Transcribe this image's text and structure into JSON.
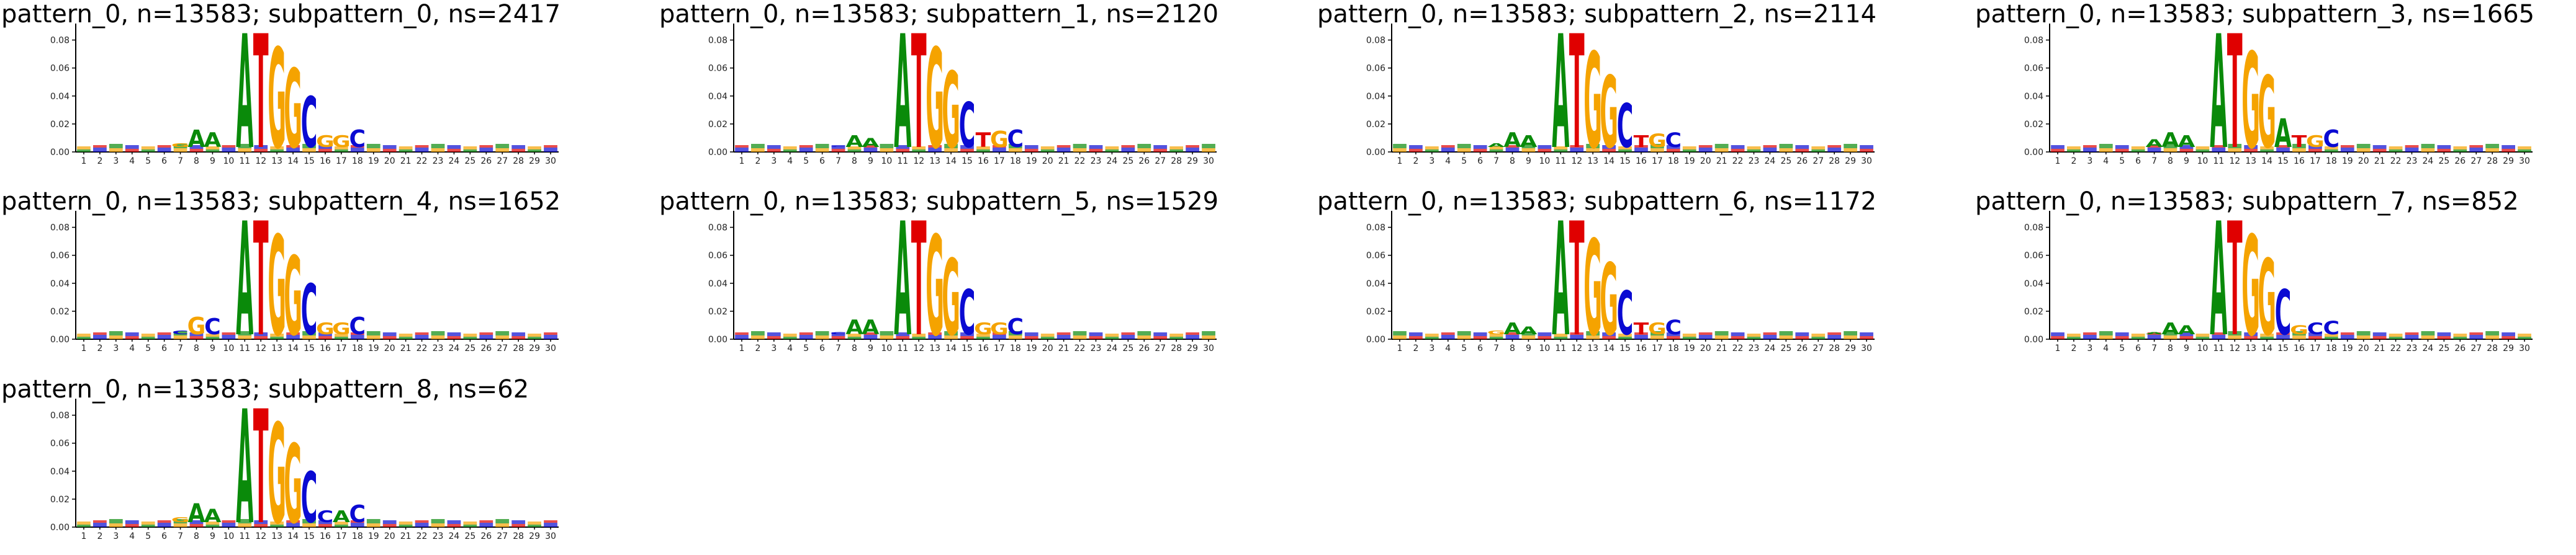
{
  "colors": {
    "A": "#0a8a0a",
    "C": "#0a0ad2",
    "G": "#f5a300",
    "T": "#e00000"
  },
  "chart_data": [
    {
      "type": "sequence-logo",
      "title": "pattern_0, n=13583; subpattern_0, ns=2417",
      "positions": [
        1,
        2,
        3,
        4,
        5,
        6,
        7,
        8,
        9,
        10,
        11,
        12,
        13,
        14,
        15,
        16,
        17,
        18,
        19,
        20,
        21,
        22,
        23,
        24,
        25,
        26,
        27,
        28,
        29,
        30
      ],
      "yticks": [
        "0.00",
        "0.02",
        "0.04",
        "0.06",
        "0.08"
      ],
      "ylim": [
        0,
        0.09
      ],
      "letters": [
        {
          "pos": 7,
          "b": "G",
          "v": 0.006
        },
        {
          "pos": 8,
          "b": "A",
          "v": 0.016
        },
        {
          "pos": 9,
          "b": "A",
          "v": 0.014
        },
        {
          "pos": 11,
          "b": "A",
          "v": 0.085
        },
        {
          "pos": 12,
          "b": "T",
          "v": 0.085
        },
        {
          "pos": 13,
          "b": "G",
          "v": 0.075
        },
        {
          "pos": 14,
          "b": "G",
          "v": 0.06
        },
        {
          "pos": 15,
          "b": "C",
          "v": 0.04
        },
        {
          "pos": 16,
          "b": "G",
          "v": 0.012
        },
        {
          "pos": 17,
          "b": "G",
          "v": 0.012
        },
        {
          "pos": 18,
          "b": "C",
          "v": 0.016
        }
      ]
    },
    {
      "type": "sequence-logo",
      "title": "pattern_0, n=13583; subpattern_1, ns=2120",
      "positions": [
        1,
        2,
        3,
        4,
        5,
        6,
        7,
        8,
        9,
        10,
        11,
        12,
        13,
        14,
        15,
        16,
        17,
        18,
        19,
        20,
        21,
        22,
        23,
        24,
        25,
        26,
        27,
        28,
        29,
        30
      ],
      "yticks": [
        "0.00",
        "0.02",
        "0.04",
        "0.06",
        "0.08"
      ],
      "ylim": [
        0,
        0.09
      ],
      "letters": [
        {
          "pos": 7,
          "b": "C",
          "v": 0.004
        },
        {
          "pos": 8,
          "b": "A",
          "v": 0.012
        },
        {
          "pos": 9,
          "b": "A",
          "v": 0.01
        },
        {
          "pos": 11,
          "b": "A",
          "v": 0.085
        },
        {
          "pos": 12,
          "b": "T",
          "v": 0.085
        },
        {
          "pos": 13,
          "b": "G",
          "v": 0.075
        },
        {
          "pos": 14,
          "b": "G",
          "v": 0.058
        },
        {
          "pos": 15,
          "b": "C",
          "v": 0.036
        },
        {
          "pos": 16,
          "b": "T",
          "v": 0.014
        },
        {
          "pos": 17,
          "b": "G",
          "v": 0.015
        },
        {
          "pos": 18,
          "b": "C",
          "v": 0.016
        }
      ]
    },
    {
      "type": "sequence-logo",
      "title": "pattern_0, n=13583; subpattern_2, ns=2114",
      "positions": [
        1,
        2,
        3,
        4,
        5,
        6,
        7,
        8,
        9,
        10,
        11,
        12,
        13,
        14,
        15,
        16,
        17,
        18,
        19,
        20,
        21,
        22,
        23,
        24,
        25,
        26,
        27,
        28,
        29,
        30
      ],
      "yticks": [
        "0.00",
        "0.02",
        "0.04",
        "0.06",
        "0.08"
      ],
      "ylim": [
        0,
        0.09
      ],
      "letters": [
        {
          "pos": 7,
          "b": "A",
          "v": 0.006
        },
        {
          "pos": 8,
          "b": "A",
          "v": 0.014
        },
        {
          "pos": 9,
          "b": "A",
          "v": 0.012
        },
        {
          "pos": 11,
          "b": "A",
          "v": 0.085
        },
        {
          "pos": 12,
          "b": "T",
          "v": 0.085
        },
        {
          "pos": 13,
          "b": "G",
          "v": 0.072
        },
        {
          "pos": 14,
          "b": "G",
          "v": 0.055
        },
        {
          "pos": 15,
          "b": "C",
          "v": 0.035
        },
        {
          "pos": 16,
          "b": "T",
          "v": 0.012
        },
        {
          "pos": 17,
          "b": "G",
          "v": 0.013
        },
        {
          "pos": 18,
          "b": "C",
          "v": 0.014
        }
      ]
    },
    {
      "type": "sequence-logo",
      "title": "pattern_0, n=13583; subpattern_3, ns=1665",
      "positions": [
        1,
        2,
        3,
        4,
        5,
        6,
        7,
        8,
        9,
        10,
        11,
        12,
        13,
        14,
        15,
        16,
        17,
        18,
        19,
        20,
        21,
        22,
        23,
        24,
        25,
        26,
        27,
        28,
        29,
        30
      ],
      "yticks": [
        "0.00",
        "0.02",
        "0.04",
        "0.06",
        "0.08"
      ],
      "ylim": [
        0,
        0.09
      ],
      "letters": [
        {
          "pos": 7,
          "b": "A",
          "v": 0.009
        },
        {
          "pos": 8,
          "b": "A",
          "v": 0.014
        },
        {
          "pos": 9,
          "b": "A",
          "v": 0.012
        },
        {
          "pos": 11,
          "b": "A",
          "v": 0.085
        },
        {
          "pos": 12,
          "b": "T",
          "v": 0.085
        },
        {
          "pos": 13,
          "b": "G",
          "v": 0.072
        },
        {
          "pos": 14,
          "b": "G",
          "v": 0.055
        },
        {
          "pos": 15,
          "b": "A",
          "v": 0.024
        },
        {
          "pos": 16,
          "b": "T",
          "v": 0.012
        },
        {
          "pos": 17,
          "b": "G",
          "v": 0.012
        },
        {
          "pos": 18,
          "b": "C",
          "v": 0.016
        }
      ]
    },
    {
      "type": "sequence-logo",
      "title": "pattern_0, n=13583; subpattern_4, ns=1652",
      "positions": [
        1,
        2,
        3,
        4,
        5,
        6,
        7,
        8,
        9,
        10,
        11,
        12,
        13,
        14,
        15,
        16,
        17,
        18,
        19,
        20,
        21,
        22,
        23,
        24,
        25,
        26,
        27,
        28,
        29,
        30
      ],
      "yticks": [
        "0.00",
        "0.02",
        "0.04",
        "0.06",
        "0.08"
      ],
      "ylim": [
        0,
        0.09
      ],
      "letters": [
        {
          "pos": 7,
          "b": "C",
          "v": 0.006
        },
        {
          "pos": 8,
          "b": "G",
          "v": 0.016
        },
        {
          "pos": 9,
          "b": "C",
          "v": 0.015
        },
        {
          "pos": 11,
          "b": "A",
          "v": 0.085
        },
        {
          "pos": 12,
          "b": "T",
          "v": 0.085
        },
        {
          "pos": 13,
          "b": "G",
          "v": 0.075
        },
        {
          "pos": 14,
          "b": "G",
          "v": 0.06
        },
        {
          "pos": 15,
          "b": "C",
          "v": 0.04
        },
        {
          "pos": 16,
          "b": "G",
          "v": 0.012
        },
        {
          "pos": 17,
          "b": "G",
          "v": 0.012
        },
        {
          "pos": 18,
          "b": "C",
          "v": 0.016
        }
      ]
    },
    {
      "type": "sequence-logo",
      "title": "pattern_0, n=13583; subpattern_5, ns=1529",
      "positions": [
        1,
        2,
        3,
        4,
        5,
        6,
        7,
        8,
        9,
        10,
        11,
        12,
        13,
        14,
        15,
        16,
        17,
        18,
        19,
        20,
        21,
        22,
        23,
        24,
        25,
        26,
        27,
        28,
        29,
        30
      ],
      "yticks": [
        "0.00",
        "0.02",
        "0.04",
        "0.06",
        "0.08"
      ],
      "ylim": [
        0,
        0.09
      ],
      "letters": [
        {
          "pos": 7,
          "b": "C",
          "v": 0.005
        },
        {
          "pos": 8,
          "b": "A",
          "v": 0.014
        },
        {
          "pos": 9,
          "b": "A",
          "v": 0.014
        },
        {
          "pos": 11,
          "b": "A",
          "v": 0.085
        },
        {
          "pos": 12,
          "b": "T",
          "v": 0.085
        },
        {
          "pos": 13,
          "b": "G",
          "v": 0.075
        },
        {
          "pos": 14,
          "b": "G",
          "v": 0.058
        },
        {
          "pos": 15,
          "b": "C",
          "v": 0.036
        },
        {
          "pos": 16,
          "b": "G",
          "v": 0.012
        },
        {
          "pos": 17,
          "b": "G",
          "v": 0.012
        },
        {
          "pos": 18,
          "b": "C",
          "v": 0.015
        }
      ]
    },
    {
      "type": "sequence-logo",
      "title": "pattern_0, n=13583; subpattern_6, ns=1172",
      "positions": [
        1,
        2,
        3,
        4,
        5,
        6,
        7,
        8,
        9,
        10,
        11,
        12,
        13,
        14,
        15,
        16,
        17,
        18,
        19,
        20,
        21,
        22,
        23,
        24,
        25,
        26,
        27,
        28,
        29,
        30
      ],
      "yticks": [
        "0.00",
        "0.02",
        "0.04",
        "0.06",
        "0.08"
      ],
      "ylim": [
        0,
        0.09
      ],
      "letters": [
        {
          "pos": 7,
          "b": "G",
          "v": 0.006
        },
        {
          "pos": 8,
          "b": "A",
          "v": 0.012
        },
        {
          "pos": 9,
          "b": "A",
          "v": 0.009
        },
        {
          "pos": 11,
          "b": "A",
          "v": 0.085
        },
        {
          "pos": 12,
          "b": "T",
          "v": 0.085
        },
        {
          "pos": 13,
          "b": "G",
          "v": 0.072
        },
        {
          "pos": 14,
          "b": "G",
          "v": 0.055
        },
        {
          "pos": 15,
          "b": "C",
          "v": 0.035
        },
        {
          "pos": 16,
          "b": "T",
          "v": 0.012
        },
        {
          "pos": 17,
          "b": "G",
          "v": 0.012
        },
        {
          "pos": 18,
          "b": "C",
          "v": 0.014
        }
      ]
    },
    {
      "type": "sequence-logo",
      "title": "pattern_0, n=13583; subpattern_7, ns=852",
      "positions": [
        1,
        2,
        3,
        4,
        5,
        6,
        7,
        8,
        9,
        10,
        11,
        12,
        13,
        14,
        15,
        16,
        17,
        18,
        19,
        20,
        21,
        22,
        23,
        24,
        25,
        26,
        27,
        28,
        29,
        30
      ],
      "yticks": [
        "0.00",
        "0.02",
        "0.04",
        "0.06",
        "0.08"
      ],
      "ylim": [
        0,
        0.09
      ],
      "letters": [
        {
          "pos": 7,
          "b": "A",
          "v": 0.005
        },
        {
          "pos": 8,
          "b": "A",
          "v": 0.012
        },
        {
          "pos": 9,
          "b": "A",
          "v": 0.01
        },
        {
          "pos": 11,
          "b": "A",
          "v": 0.085
        },
        {
          "pos": 12,
          "b": "T",
          "v": 0.085
        },
        {
          "pos": 13,
          "b": "G",
          "v": 0.075
        },
        {
          "pos": 14,
          "b": "G",
          "v": 0.058
        },
        {
          "pos": 15,
          "b": "C",
          "v": 0.036
        },
        {
          "pos": 16,
          "b": "G",
          "v": 0.01
        },
        {
          "pos": 17,
          "b": "C",
          "v": 0.012
        },
        {
          "pos": 18,
          "b": "C",
          "v": 0.013
        }
      ]
    },
    {
      "type": "sequence-logo",
      "title": "pattern_0, n=13583; subpattern_8, ns=62",
      "positions": [
        1,
        2,
        3,
        4,
        5,
        6,
        7,
        8,
        9,
        10,
        11,
        12,
        13,
        14,
        15,
        16,
        17,
        18,
        19,
        20,
        21,
        22,
        23,
        24,
        25,
        26,
        27,
        28,
        29,
        30
      ],
      "yticks": [
        "0.00",
        "0.02",
        "0.04",
        "0.06",
        "0.08"
      ],
      "ylim": [
        0,
        0.09
      ],
      "letters": [
        {
          "pos": 7,
          "b": "G",
          "v": 0.007
        },
        {
          "pos": 8,
          "b": "A",
          "v": 0.017
        },
        {
          "pos": 9,
          "b": "A",
          "v": 0.013
        },
        {
          "pos": 11,
          "b": "A",
          "v": 0.085
        },
        {
          "pos": 12,
          "b": "T",
          "v": 0.085
        },
        {
          "pos": 13,
          "b": "G",
          "v": 0.075
        },
        {
          "pos": 14,
          "b": "G",
          "v": 0.06
        },
        {
          "pos": 15,
          "b": "C",
          "v": 0.04
        },
        {
          "pos": 16,
          "b": "C",
          "v": 0.012
        },
        {
          "pos": 17,
          "b": "A",
          "v": 0.012
        },
        {
          "pos": 18,
          "b": "C",
          "v": 0.016
        }
      ]
    }
  ]
}
